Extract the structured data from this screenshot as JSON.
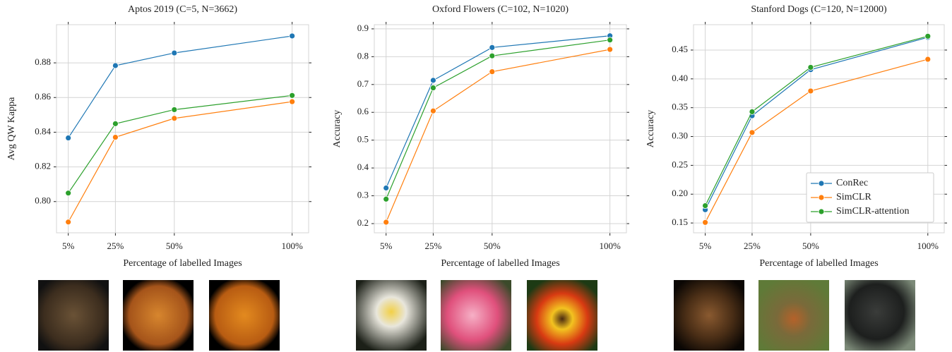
{
  "chart_data": [
    {
      "type": "line",
      "title": "Aptos 2019 (C=5, N=3662)",
      "xlabel": "Percentage of labelled Images",
      "ylabel": "Avg QW Kappa",
      "x": [
        5,
        25,
        50,
        100
      ],
      "xlim": [
        0,
        107
      ],
      "xticks": [
        {
          "value": 5,
          "label": "5%"
        },
        {
          "value": 25,
          "label": "25%"
        },
        {
          "value": 50,
          "label": "50%"
        },
        {
          "value": 100,
          "label": "100%"
        }
      ],
      "ylim": [
        0.782,
        0.902
      ],
      "yticks": [
        {
          "value": 0.8,
          "label": "0.80"
        },
        0.82,
        0.84,
        0.86,
        0.88
      ],
      "grid": true,
      "series": [
        {
          "name": "ConRec",
          "color": "#1f77b4",
          "values": [
            0.8367,
            0.8784,
            0.8857,
            0.8955
          ]
        },
        {
          "name": "SimCLR",
          "color": "#ff7f0e",
          "values": [
            0.7882,
            0.8371,
            0.848,
            0.8576
          ]
        },
        {
          "name": "SimCLR-attention",
          "color": "#2ca02c",
          "values": [
            0.8049,
            0.8449,
            0.853,
            0.8612
          ]
        }
      ]
    },
    {
      "type": "line",
      "title": "Oxford Flowers (C=102, N=1020)",
      "xlabel": "Percentage of labelled Images",
      "ylabel": "Accuracy",
      "x": [
        5,
        25,
        50,
        100
      ],
      "xlim": [
        0,
        107
      ],
      "xticks": [
        {
          "value": 5,
          "label": "5%"
        },
        {
          "value": 25,
          "label": "25%"
        },
        {
          "value": 50,
          "label": "50%"
        },
        {
          "value": 100,
          "label": "100%"
        }
      ],
      "ylim": [
        0.167,
        0.915
      ],
      "yticks": [
        0.2,
        0.3,
        0.4,
        0.5,
        0.6,
        0.7,
        0.8,
        0.9
      ],
      "grid": true,
      "series": [
        {
          "name": "ConRec",
          "color": "#1f77b4",
          "values": [
            0.328,
            0.715,
            0.833,
            0.875
          ]
        },
        {
          "name": "SimCLR",
          "color": "#ff7f0e",
          "values": [
            0.205,
            0.605,
            0.746,
            0.826
          ]
        },
        {
          "name": "SimCLR-attention",
          "color": "#2ca02c",
          "values": [
            0.288,
            0.688,
            0.803,
            0.86
          ]
        }
      ]
    },
    {
      "type": "line",
      "title": "Stanford Dogs (C=120, N=12000)",
      "xlabel": "Percentage of labelled Images",
      "ylabel": "Accuracy",
      "x": [
        5,
        25,
        50,
        100
      ],
      "xlim": [
        0,
        107
      ],
      "xticks": [
        {
          "value": 5,
          "label": "5%"
        },
        {
          "value": 25,
          "label": "25%"
        },
        {
          "value": 50,
          "label": "50%"
        },
        {
          "value": 100,
          "label": "100%"
        }
      ],
      "ylim": [
        0.133,
        0.494
      ],
      "yticks": [
        0.15,
        {
          "value": 0.2,
          "label": "0.20"
        },
        0.25,
        {
          "value": 0.3,
          "label": "0.30"
        },
        0.35,
        {
          "value": 0.4,
          "label": "0.40"
        },
        0.45
      ],
      "grid": true,
      "legend": "lower right",
      "series": [
        {
          "name": "ConRec",
          "color": "#1f77b4",
          "values": [
            0.173,
            0.336,
            0.416,
            0.472
          ]
        },
        {
          "name": "SimCLR",
          "color": "#ff7f0e",
          "values": [
            0.151,
            0.307,
            0.379,
            0.434
          ]
        },
        {
          "name": "SimCLR-attention",
          "color": "#2ca02c",
          "values": [
            0.18,
            0.343,
            0.42,
            0.474
          ]
        }
      ]
    }
  ]
}
